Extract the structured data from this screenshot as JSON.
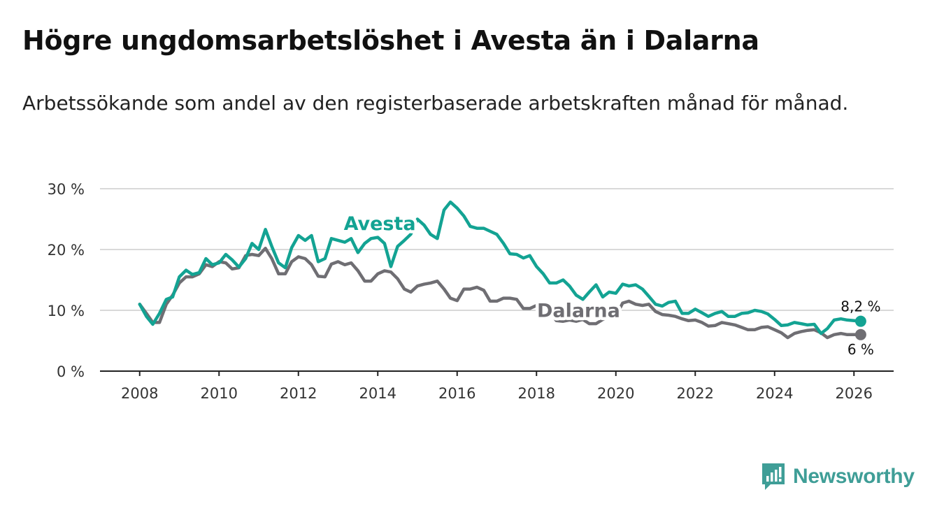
{
  "title": "Högre ungdomsarbetslöshet i Avesta än i Dalarna",
  "subtitle": "Arbetssökande som andel av den registerbaserade arbetskraften månad för månad.",
  "brand": "Newsworthy",
  "colors": {
    "avesta": "#13a393",
    "dalarna": "#6f6e73",
    "grid": "#d9d9d9",
    "axis": "#222222",
    "brand": "#3f9e97"
  },
  "chart_data": {
    "type": "line",
    "title": "Högre ungdomsarbetslöshet i Avesta än i Dalarna",
    "xlabel": "",
    "ylabel": "",
    "xlim": [
      2007,
      2027
    ],
    "ylim": [
      0,
      30
    ],
    "grid": true,
    "y_ticks": [
      {
        "value": 0,
        "label": "0 %"
      },
      {
        "value": 10,
        "label": "10 %"
      },
      {
        "value": 20,
        "label": "20 %"
      },
      {
        "value": 30,
        "label": "30 %"
      }
    ],
    "x_ticks": [
      {
        "value": 2008,
        "label": "2008"
      },
      {
        "value": 2010,
        "label": "2010"
      },
      {
        "value": 2012,
        "label": "2012"
      },
      {
        "value": 2014,
        "label": "2014"
      },
      {
        "value": 2016,
        "label": "2016"
      },
      {
        "value": 2018,
        "label": "2018"
      },
      {
        "value": 2020,
        "label": "2020"
      },
      {
        "value": 2022,
        "label": "2022"
      },
      {
        "value": 2024,
        "label": "2024"
      },
      {
        "value": 2026,
        "label": "2026"
      }
    ],
    "series": [
      {
        "name": "Avesta",
        "color": "#13a393",
        "end_label": "8,2 %",
        "x": [
          2008.0,
          2008.17,
          2008.33,
          2008.5,
          2008.67,
          2008.83,
          2009.0,
          2009.17,
          2009.33,
          2009.5,
          2009.67,
          2009.83,
          2010.0,
          2010.17,
          2010.33,
          2010.5,
          2010.67,
          2010.83,
          2011.0,
          2011.17,
          2011.33,
          2011.5,
          2011.67,
          2011.83,
          2012.0,
          2012.17,
          2012.33,
          2012.5,
          2012.67,
          2012.83,
          2013.0,
          2013.17,
          2013.33,
          2013.5,
          2013.67,
          2013.83,
          2014.0,
          2014.17,
          2014.33,
          2014.5,
          2014.67,
          2014.83,
          2015.0,
          2015.17,
          2015.33,
          2015.5,
          2015.67,
          2015.83,
          2016.0,
          2016.17,
          2016.33,
          2016.5,
          2016.67,
          2016.83,
          2017.0,
          2017.17,
          2017.33,
          2017.5,
          2017.67,
          2017.83,
          2018.0,
          2018.17,
          2018.33,
          2018.5,
          2018.67,
          2018.83,
          2019.0,
          2019.17,
          2019.33,
          2019.5,
          2019.67,
          2019.83,
          2020.0,
          2020.17,
          2020.33,
          2020.5,
          2020.67,
          2020.83,
          2021.0,
          2021.17,
          2021.33,
          2021.5,
          2021.67,
          2021.83,
          2022.0,
          2022.17,
          2022.33,
          2022.5,
          2022.67,
          2022.83,
          2023.0,
          2023.17,
          2023.33,
          2023.5,
          2023.67,
          2023.83,
          2024.0,
          2024.17,
          2024.33,
          2024.5,
          2024.67,
          2024.83,
          2025.0,
          2025.17,
          2025.33,
          2025.5,
          2025.67,
          2025.83,
          2026.0,
          2026.17
        ],
        "values": [
          11.0,
          9.0,
          7.7,
          9.5,
          11.8,
          12.2,
          15.5,
          16.6,
          15.9,
          16.2,
          18.5,
          17.5,
          17.8,
          19.2,
          18.3,
          17.1,
          18.5,
          21.0,
          20.0,
          23.3,
          20.5,
          17.8,
          17.0,
          20.3,
          22.3,
          21.5,
          22.3,
          18.0,
          18.5,
          21.8,
          21.5,
          21.2,
          21.8,
          19.5,
          21.0,
          21.8,
          22.0,
          21.0,
          17.2,
          20.5,
          21.5,
          22.5,
          25.0,
          24.0,
          22.5,
          21.8,
          26.5,
          27.8,
          26.8,
          25.5,
          23.8,
          23.5,
          23.5,
          23.0,
          22.5,
          21.0,
          19.3,
          19.2,
          18.6,
          19.0,
          17.2,
          16.0,
          14.5,
          14.5,
          15.0,
          14.0,
          12.5,
          11.8,
          13.0,
          14.2,
          12.2,
          13.0,
          12.8,
          14.3,
          14.0,
          14.2,
          13.5,
          12.3,
          11.0,
          10.7,
          11.3,
          11.5,
          9.5,
          9.5,
          10.2,
          9.6,
          9.0,
          9.5,
          9.8,
          9.0,
          9.0,
          9.5,
          9.6,
          10.0,
          9.8,
          9.4,
          8.5,
          7.5,
          7.6,
          8.0,
          7.8,
          7.6,
          7.7,
          6.2,
          7.0,
          8.4,
          8.6,
          8.4,
          8.3,
          8.2
        ]
      },
      {
        "name": "Dalarna",
        "color": "#6f6e73",
        "end_label": "6 %",
        "x": [
          2008.0,
          2008.17,
          2008.33,
          2008.5,
          2008.67,
          2008.83,
          2009.0,
          2009.17,
          2009.33,
          2009.5,
          2009.67,
          2009.83,
          2010.0,
          2010.17,
          2010.33,
          2010.5,
          2010.67,
          2010.83,
          2011.0,
          2011.17,
          2011.33,
          2011.5,
          2011.67,
          2011.83,
          2012.0,
          2012.17,
          2012.33,
          2012.5,
          2012.67,
          2012.83,
          2013.0,
          2013.17,
          2013.33,
          2013.5,
          2013.67,
          2013.83,
          2014.0,
          2014.17,
          2014.33,
          2014.5,
          2014.67,
          2014.83,
          2015.0,
          2015.17,
          2015.33,
          2015.5,
          2015.67,
          2015.83,
          2016.0,
          2016.17,
          2016.33,
          2016.5,
          2016.67,
          2016.83,
          2017.0,
          2017.17,
          2017.33,
          2017.5,
          2017.67,
          2017.83,
          2018.0,
          2018.17,
          2018.33,
          2018.5,
          2018.67,
          2018.83,
          2019.0,
          2019.17,
          2019.33,
          2019.5,
          2019.67,
          2019.83,
          2020.0,
          2020.17,
          2020.33,
          2020.5,
          2020.67,
          2020.83,
          2021.0,
          2021.17,
          2021.33,
          2021.5,
          2021.67,
          2021.83,
          2022.0,
          2022.17,
          2022.33,
          2022.5,
          2022.67,
          2022.83,
          2023.0,
          2023.17,
          2023.33,
          2023.5,
          2023.67,
          2023.83,
          2024.0,
          2024.17,
          2024.33,
          2024.5,
          2024.67,
          2024.83,
          2025.0,
          2025.17,
          2025.33,
          2025.5,
          2025.67,
          2025.83,
          2026.0,
          2026.17
        ],
        "values": [
          11.0,
          9.5,
          8.0,
          8.0,
          11.0,
          12.5,
          14.5,
          15.5,
          15.5,
          16.0,
          17.5,
          17.2,
          18.0,
          17.8,
          16.8,
          17.0,
          19.0,
          19.2,
          19.0,
          20.2,
          18.5,
          16.0,
          16.0,
          18.0,
          18.8,
          18.5,
          17.5,
          15.6,
          15.5,
          17.6,
          18.0,
          17.5,
          17.8,
          16.5,
          14.8,
          14.8,
          16.0,
          16.5,
          16.3,
          15.2,
          13.5,
          13.0,
          14.0,
          14.3,
          14.5,
          14.8,
          13.5,
          12.0,
          11.6,
          13.5,
          13.5,
          13.8,
          13.3,
          11.5,
          11.5,
          12.0,
          12.0,
          11.8,
          10.3,
          10.3,
          10.8,
          10.6,
          9.8,
          8.3,
          8.2,
          8.4,
          8.2,
          8.5,
          7.8,
          7.8,
          8.5,
          9.0,
          9.0,
          11.2,
          11.5,
          11.0,
          10.8,
          11.0,
          9.8,
          9.3,
          9.2,
          9.0,
          8.6,
          8.3,
          8.4,
          8.0,
          7.4,
          7.5,
          8.0,
          7.8,
          7.6,
          7.2,
          6.8,
          6.8,
          7.2,
          7.3,
          6.8,
          6.3,
          5.5,
          6.2,
          6.5,
          6.7,
          6.8,
          6.3,
          5.5,
          6.0,
          6.2,
          6.0,
          6.0,
          6.0
        ]
      }
    ],
    "annotations": [
      {
        "text": "Avesta",
        "series": "Avesta",
        "at_x": 2014.05,
        "at_y": 23.2
      },
      {
        "text": "Dalarna",
        "series": "Dalarna",
        "at_x": 2019.06,
        "at_y": 8.9
      }
    ]
  }
}
